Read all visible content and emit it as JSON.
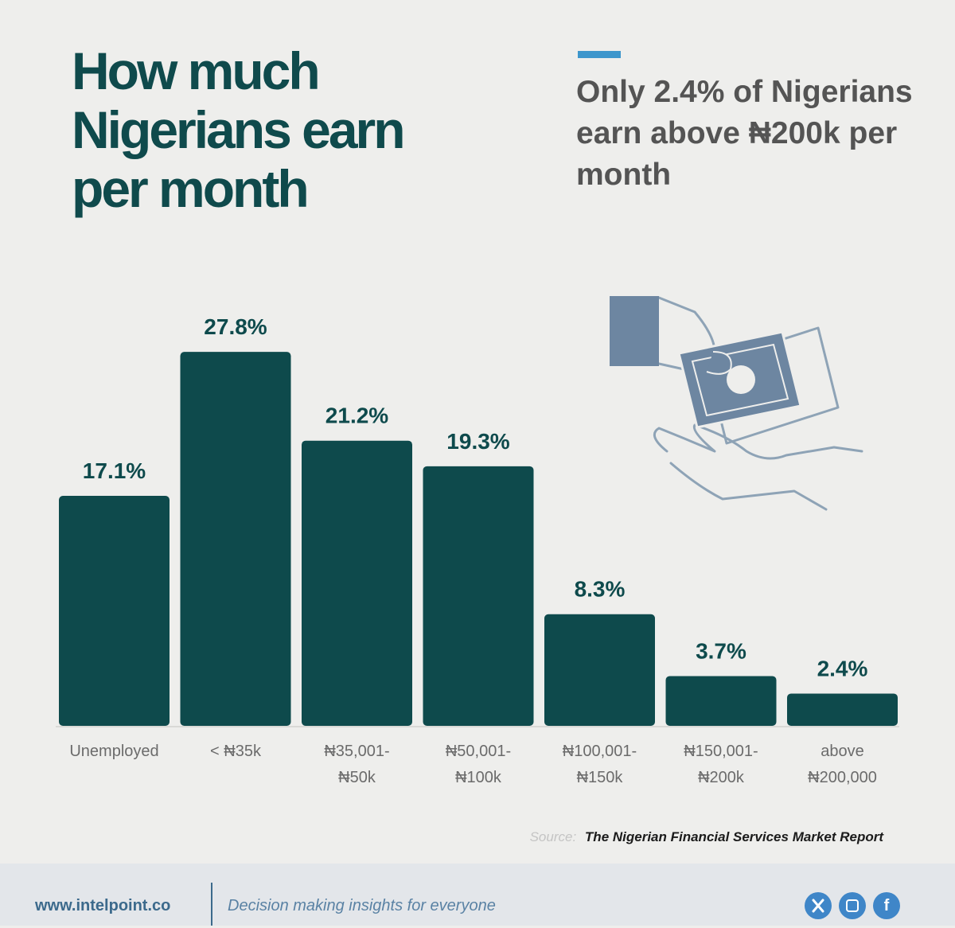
{
  "title": "How much Nigerians earn per month",
  "headline": "Only 2.4% of Nigerians earn above ₦200k per month",
  "colors": {
    "bar": "#0e4a4c",
    "accent": "#3d96cc",
    "title": "#0f4a4c",
    "background": "#eeeeec"
  },
  "chart_data": {
    "type": "bar",
    "title": "How much Nigerians earn per month",
    "xlabel": "",
    "ylabel": "",
    "ylim": [
      0,
      30
    ],
    "grid": false,
    "categories": [
      [
        "Unemployed"
      ],
      [
        "< ₦35k"
      ],
      [
        "₦35,001-",
        "₦50k"
      ],
      [
        "₦50,001-",
        "₦100k"
      ],
      [
        "₦100,001-",
        "₦150k"
      ],
      [
        "₦150,001-",
        "₦200k"
      ],
      [
        "above",
        "₦200,000"
      ]
    ],
    "values": [
      17.1,
      27.8,
      21.2,
      19.3,
      8.3,
      3.7,
      2.4
    ],
    "value_labels": [
      "17.1%",
      "27.8%",
      "21.2%",
      "19.3%",
      "8.3%",
      "3.7%",
      "2.4%"
    ]
  },
  "illustration": {
    "icon": "money-hand-icon"
  },
  "source": {
    "label": "Source:",
    "text": "The Nigerian Financial Services Market Report"
  },
  "footer": {
    "website": "www.intelpoint.co",
    "tagline": "Decision making insights for everyone",
    "social_icons": [
      "x-icon",
      "instagram-icon",
      "facebook-icon"
    ],
    "facebook_glyph": "f"
  }
}
